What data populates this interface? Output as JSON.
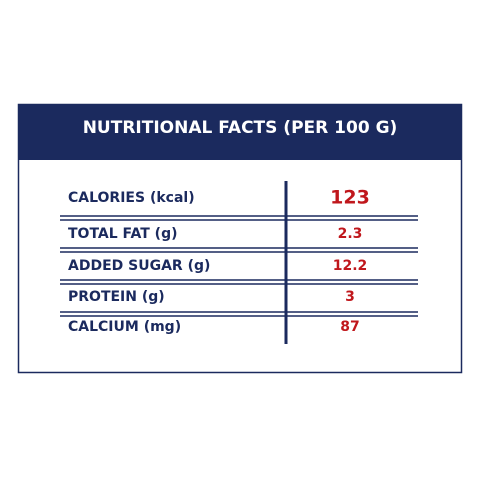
{
  "header": {
    "title": "NUTRITIONAL FACTS (PER 100 G)"
  },
  "table": {
    "rows": [
      [
        "CALORIES (kcal)",
        123
      ],
      [
        "TOTAL FAT (g)",
        2.3
      ],
      [
        "ADDED SUGAR (g)",
        12.2
      ],
      [
        "PROTEIN (g)",
        3
      ],
      [
        "CALCIUM (mg)",
        87
      ]
    ]
  }
}
